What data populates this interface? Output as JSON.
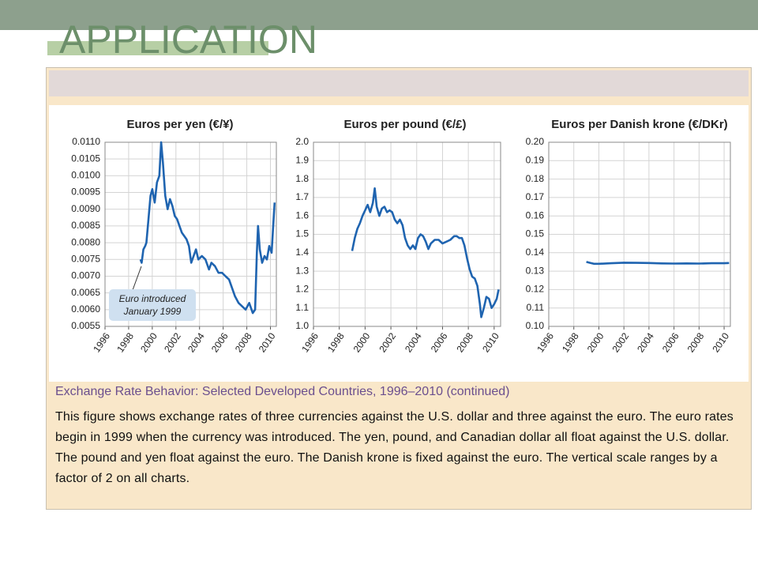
{
  "header": {
    "title": "APPLICATION"
  },
  "chart_data": [
    {
      "type": "line",
      "title": "Euros per yen (€/¥)",
      "color": "#1f64b0",
      "grid": true,
      "xlim": [
        1996,
        2010.5
      ],
      "xticks": [
        1996,
        1998,
        2000,
        2002,
        2004,
        2006,
        2008,
        2010
      ],
      "ylim": [
        0.0055,
        0.011
      ],
      "yticks": [
        0.0055,
        {
          "value": 0.006,
          "label": "0.0060"
        },
        0.0065,
        {
          "value": 0.007,
          "label": "0.0070"
        },
        0.0075,
        {
          "value": 0.008,
          "label": "0.0080"
        },
        0.0085,
        {
          "value": 0.009,
          "label": "0.0090"
        },
        0.0095,
        {
          "value": 0.01,
          "label": "0.0100"
        },
        0.0105,
        {
          "value": 0.011,
          "label": "0.0110"
        }
      ],
      "annotation": [
        "Euro introduced",
        "January 1999"
      ],
      "x": [
        1999.0,
        1999.1,
        1999.25,
        1999.4,
        1999.5,
        1999.7,
        1999.85,
        2000.0,
        2000.2,
        2000.4,
        2000.6,
        2000.75,
        2000.9,
        2001.1,
        2001.3,
        2001.5,
        2001.7,
        2001.9,
        2002.1,
        2002.3,
        2002.5,
        2002.7,
        2002.9,
        2003.1,
        2003.3,
        2003.5,
        2003.7,
        2003.9,
        2004.2,
        2004.5,
        2004.8,
        2005.0,
        2005.3,
        2005.6,
        2005.9,
        2006.2,
        2006.5,
        2006.8,
        2007.0,
        2007.3,
        2007.6,
        2007.9,
        2008.2,
        2008.5,
        2008.7,
        2008.85,
        2008.95,
        2009.1,
        2009.3,
        2009.5,
        2009.7,
        2009.9,
        2010.1,
        2010.2,
        2010.35
      ],
      "values": [
        0.0075,
        0.0074,
        0.0078,
        0.0079,
        0.008,
        0.0088,
        0.0094,
        0.0096,
        0.0092,
        0.0098,
        0.01,
        0.011,
        0.0104,
        0.0094,
        0.009,
        0.0093,
        0.0091,
        0.0088,
        0.0087,
        0.0085,
        0.0083,
        0.0082,
        0.0081,
        0.0079,
        0.0074,
        0.0076,
        0.0078,
        0.0075,
        0.0076,
        0.0075,
        0.0072,
        0.0074,
        0.0073,
        0.0071,
        0.0071,
        0.007,
        0.0069,
        0.0066,
        0.0064,
        0.0062,
        0.0061,
        0.006,
        0.0062,
        0.0059,
        0.006,
        0.0077,
        0.0085,
        0.0078,
        0.0074,
        0.0076,
        0.0075,
        0.0079,
        0.0077,
        0.0083,
        0.0092
      ]
    },
    {
      "type": "line",
      "title": "Euros per pound (€/£)",
      "color": "#1f64b0",
      "grid": true,
      "xlim": [
        1996,
        2010.5
      ],
      "xticks": [
        1996,
        1998,
        2000,
        2002,
        2004,
        2006,
        2008,
        2010
      ],
      "ylim": [
        1.0,
        2.0
      ],
      "yticks": [
        {
          "value": 1.0,
          "label": "1.0"
        },
        1.1,
        1.2,
        1.3,
        1.4,
        1.5,
        1.6,
        1.7,
        1.8,
        1.9,
        {
          "value": 2.0,
          "label": "2.0"
        }
      ],
      "x": [
        1999.0,
        1999.2,
        1999.4,
        1999.6,
        1999.8,
        2000.0,
        2000.2,
        2000.4,
        2000.6,
        2000.75,
        2000.9,
        2001.1,
        2001.3,
        2001.5,
        2001.7,
        2001.9,
        2002.1,
        2002.3,
        2002.5,
        2002.7,
        2002.9,
        2003.1,
        2003.3,
        2003.5,
        2003.7,
        2003.9,
        2004.1,
        2004.3,
        2004.5,
        2004.7,
        2004.9,
        2005.1,
        2005.4,
        2005.7,
        2006.0,
        2006.3,
        2006.6,
        2006.9,
        2007.1,
        2007.3,
        2007.5,
        2007.7,
        2007.9,
        2008.1,
        2008.3,
        2008.5,
        2008.7,
        2008.9,
        2009.0,
        2009.2,
        2009.4,
        2009.6,
        2009.8,
        2010.0,
        2010.2,
        2010.35
      ],
      "values": [
        1.41,
        1.48,
        1.53,
        1.56,
        1.6,
        1.63,
        1.66,
        1.62,
        1.67,
        1.75,
        1.65,
        1.6,
        1.64,
        1.65,
        1.62,
        1.63,
        1.62,
        1.58,
        1.56,
        1.58,
        1.55,
        1.48,
        1.44,
        1.42,
        1.44,
        1.42,
        1.48,
        1.5,
        1.49,
        1.46,
        1.42,
        1.45,
        1.47,
        1.47,
        1.45,
        1.46,
        1.47,
        1.49,
        1.49,
        1.48,
        1.48,
        1.44,
        1.37,
        1.31,
        1.27,
        1.26,
        1.22,
        1.12,
        1.05,
        1.1,
        1.16,
        1.15,
        1.1,
        1.12,
        1.15,
        1.2
      ]
    },
    {
      "type": "line",
      "title": "Euros per Danish krone (€/DKr)",
      "color": "#1f64b0",
      "grid": true,
      "xlim": [
        1996,
        2010.5
      ],
      "xticks": [
        1996,
        1998,
        2000,
        2002,
        2004,
        2006,
        2008,
        2010
      ],
      "ylim": [
        0.1,
        0.2
      ],
      "yticks": [
        {
          "value": 0.1,
          "label": "0.10"
        },
        0.11,
        0.12,
        0.13,
        0.14,
        0.15,
        0.16,
        0.17,
        0.18,
        0.19,
        {
          "value": 0.2,
          "label": "0.20"
        }
      ],
      "x": [
        1999.0,
        1999.3,
        1999.6,
        2000.0,
        2001.0,
        2002.0,
        2003.0,
        2004.0,
        2005.0,
        2006.0,
        2007.0,
        2008.0,
        2009.0,
        2010.0,
        2010.4
      ],
      "values": [
        0.135,
        0.1345,
        0.134,
        0.134,
        0.1343,
        0.1346,
        0.1345,
        0.1344,
        0.1342,
        0.1341,
        0.1342,
        0.1341,
        0.1343,
        0.1343,
        0.1344
      ]
    }
  ],
  "caption": {
    "title": "Exchange Rate Behavior: Selected Developed Countries, 1996–2010 (continued)",
    "text": "This figure shows exchange rates of three currencies against the U.S. dollar and three against the euro. The euro rates begin in 1999 when the currency was introduced. The yen, pound, and Canadian dollar all float against the U.S. dollar. The pound and yen float against the euro. The Danish krone is fixed against the euro. The vertical scale ranges by a factor of 2 on all charts."
  }
}
